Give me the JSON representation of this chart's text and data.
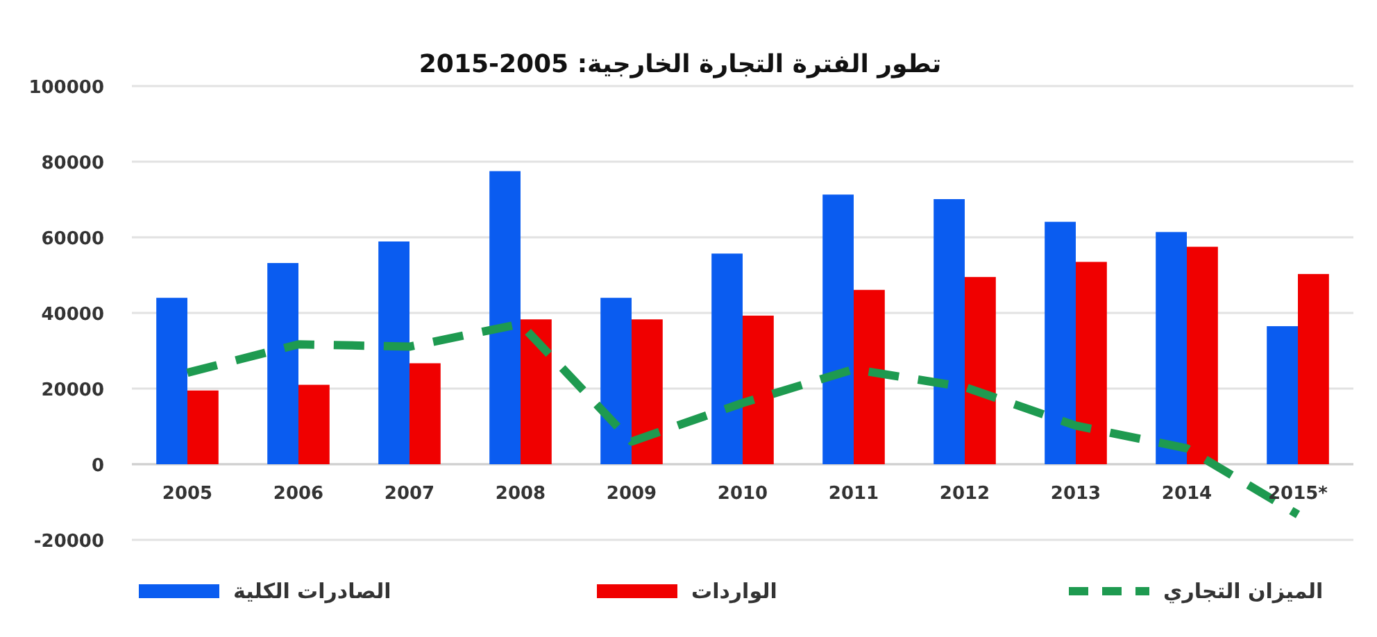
{
  "chart_data": {
    "type": "bar",
    "title": "تطور الفترة التجارة الخارجية: 2005-2015",
    "categories": [
      "2005",
      "2006",
      "2007",
      "2008",
      "2009",
      "2010",
      "2011",
      "2012",
      "2013",
      "2014",
      "2015*"
    ],
    "series": [
      {
        "name": "الصادرات الكلية",
        "color": "#0a5cf0",
        "values": [
          44000,
          53200,
          58900,
          77500,
          44000,
          55700,
          71300,
          70100,
          64100,
          61400,
          36500
        ]
      },
      {
        "name": "الواردات",
        "color": "#f00000",
        "values": [
          19500,
          21000,
          26700,
          38300,
          38300,
          39300,
          46100,
          49500,
          53500,
          57500,
          50300
        ]
      },
      {
        "name": "الميزان التجاري",
        "color": "#1e9a50",
        "type": "line",
        "line_style": "dashed",
        "values": [
          24200,
          31700,
          31100,
          37100,
          6000,
          16200,
          25100,
          20400,
          10200,
          4200,
          -13300
        ]
      }
    ],
    "ylim": [
      -20000,
      100000
    ],
    "yticks": [
      -20000,
      0,
      20000,
      40000,
      60000,
      80000,
      100000
    ],
    "grid": "y",
    "legend": "bottom"
  }
}
